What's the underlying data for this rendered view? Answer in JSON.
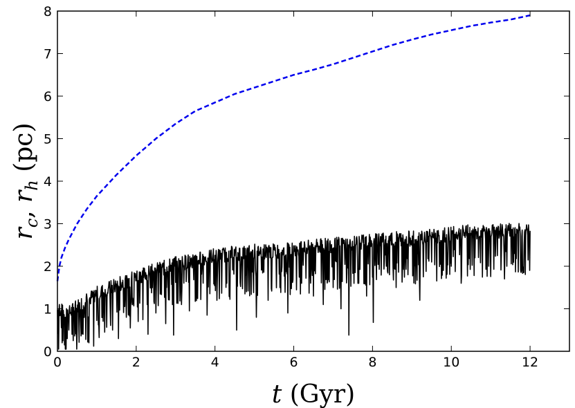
{
  "chart_data": {
    "type": "line",
    "xlabel": {
      "var": "t",
      "unit": "(Gyr)"
    },
    "ylabel": {
      "var1": "r",
      "sub1": "c",
      "sep": ", ",
      "var2": "r",
      "sub2": "h",
      "unit": "(pc)"
    },
    "xlim": [
      0,
      13
    ],
    "ylim": [
      0,
      8
    ],
    "xticks": [
      0,
      2,
      4,
      6,
      8,
      10,
      12
    ],
    "yticks": [
      0,
      1,
      2,
      3,
      4,
      5,
      6,
      7,
      8
    ],
    "grid": false,
    "series": [
      {
        "name": "r_h",
        "style": "dashed",
        "color": "#0000ee",
        "x": [
          0,
          0.05,
          0.1,
          0.2,
          0.3,
          0.5,
          0.75,
          1.0,
          1.5,
          2.0,
          2.5,
          3.0,
          3.5,
          4.0,
          4.5,
          5.0,
          5.5,
          6.0,
          6.5,
          7.0,
          7.5,
          8.0,
          8.5,
          9.0,
          9.5,
          10.0,
          10.5,
          11.0,
          11.5,
          12.0
        ],
        "y": [
          1.65,
          2.0,
          2.2,
          2.45,
          2.65,
          3.0,
          3.35,
          3.65,
          4.15,
          4.6,
          5.0,
          5.35,
          5.65,
          5.85,
          6.05,
          6.2,
          6.35,
          6.5,
          6.62,
          6.75,
          6.9,
          7.05,
          7.2,
          7.33,
          7.45,
          7.55,
          7.65,
          7.73,
          7.8,
          7.9
        ]
      },
      {
        "name": "r_c",
        "style": "solid",
        "color": "#000000",
        "x": [
          0,
          0.05,
          0.1,
          0.2,
          0.3,
          0.5,
          0.75,
          1.0,
          1.5,
          2.0,
          2.5,
          3.0,
          3.5,
          4.0,
          4.5,
          5.0,
          5.5,
          6.0,
          6.5,
          7.0,
          7.5,
          8.0,
          8.5,
          9.0,
          9.5,
          10.0,
          10.5,
          11.0,
          11.5,
          12.0
        ],
        "y": [
          0.95,
          1.0,
          0.95,
          0.85,
          0.9,
          1.05,
          1.2,
          1.35,
          1.55,
          1.75,
          1.9,
          2.05,
          2.15,
          2.25,
          2.3,
          2.35,
          2.35,
          2.4,
          2.45,
          2.5,
          2.55,
          2.6,
          2.65,
          2.65,
          2.7,
          2.75,
          2.8,
          2.8,
          2.85,
          2.85
        ],
        "noise_amplitude": 0.18,
        "dips": [
          [
            0.12,
            0.2
          ],
          [
            0.18,
            0.15
          ],
          [
            0.25,
            0.3
          ],
          [
            0.4,
            0.25
          ],
          [
            0.5,
            0.5
          ],
          [
            0.65,
            0.4
          ],
          [
            0.8,
            0.2
          ],
          [
            0.92,
            0.12
          ],
          [
            1.05,
            0.6
          ],
          [
            1.2,
            0.45
          ],
          [
            1.4,
            0.5
          ],
          [
            1.55,
            0.3
          ],
          [
            1.75,
            0.8
          ],
          [
            1.85,
            0.55
          ],
          [
            2.05,
            0.7
          ],
          [
            2.3,
            0.4
          ],
          [
            2.5,
            0.9
          ],
          [
            2.75,
            0.65
          ],
          [
            2.95,
            0.38
          ],
          [
            3.15,
            1.1
          ],
          [
            3.35,
            0.95
          ],
          [
            3.55,
            1.3
          ],
          [
            3.8,
            0.85
          ],
          [
            4.05,
            1.2
          ],
          [
            4.3,
            1.6
          ],
          [
            4.55,
            0.5
          ],
          [
            4.8,
            1.4
          ],
          [
            5.05,
            0.8
          ],
          [
            5.35,
            1.2
          ],
          [
            5.65,
            1.5
          ],
          [
            5.85,
            0.9
          ],
          [
            6.2,
            1.6
          ],
          [
            6.5,
            1.3
          ],
          [
            6.75,
            1.1
          ],
          [
            7.0,
            1.5
          ],
          [
            7.2,
            1.0
          ],
          [
            7.4,
            0.38
          ],
          [
            7.65,
            1.6
          ],
          [
            7.85,
            1.3
          ],
          [
            8.02,
            0.68
          ],
          [
            8.35,
            2.0
          ],
          [
            8.6,
            1.5
          ],
          [
            8.9,
            1.8
          ],
          [
            9.2,
            1.2
          ],
          [
            9.5,
            2.1
          ],
          [
            9.8,
            1.9
          ],
          [
            10.0,
            2.0
          ],
          [
            10.25,
            1.6
          ],
          [
            10.6,
            2.2
          ],
          [
            10.95,
            2.0
          ],
          [
            11.35,
            1.7
          ],
          [
            11.6,
            2.3
          ],
          [
            11.85,
            2.5
          ]
        ]
      }
    ]
  }
}
